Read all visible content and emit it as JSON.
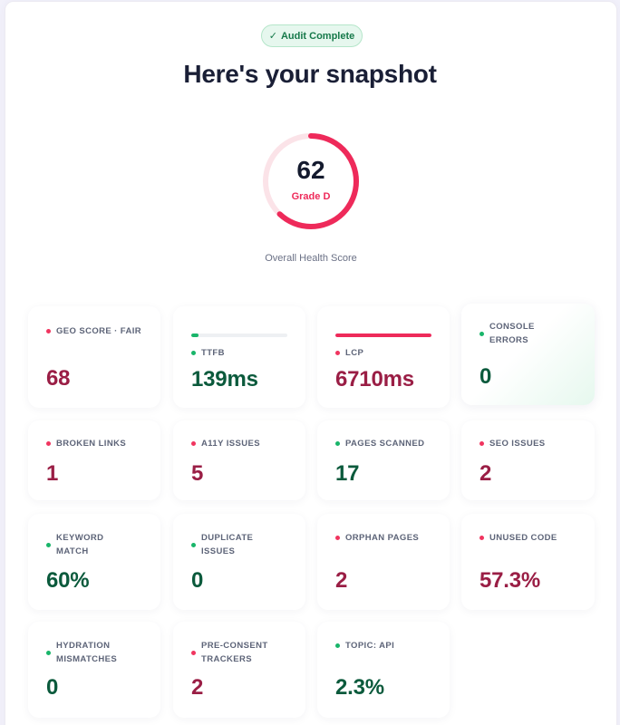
{
  "badge": {
    "icon": "check-icon",
    "label": "Audit Complete"
  },
  "title": "Here's your snapshot",
  "score": {
    "value": "62",
    "grade": "Grade D",
    "caption": "Overall Health Score",
    "fraction": 0.62,
    "color": "#ee2a5a",
    "track_color": "#fbe3e8"
  },
  "cards": [
    {
      "key": "geo",
      "label": "GEO SCORE · FAIR",
      "value": "68",
      "status": "bad"
    },
    {
      "key": "ttfb",
      "label": "TTFB",
      "value": "139ms",
      "status": "good",
      "progress": 0.08
    },
    {
      "key": "lcp",
      "label": "LCP",
      "value": "6710ms",
      "status": "bad",
      "progress": 1.0
    },
    {
      "key": "console",
      "label": "CONSOLE ERRORS",
      "label_lines": [
        "CONSOLE",
        "ERRORS"
      ],
      "value": "0",
      "status": "good"
    },
    {
      "key": "broken-links",
      "label": "BROKEN LINKS",
      "value": "1",
      "status": "bad"
    },
    {
      "key": "a11y",
      "label": "A11Y ISSUES",
      "value": "5",
      "status": "bad"
    },
    {
      "key": "pages-scanned",
      "label": "PAGES SCANNED",
      "value": "17",
      "status": "good"
    },
    {
      "key": "seo",
      "label": "SEO ISSUES",
      "value": "2",
      "status": "bad"
    },
    {
      "key": "keyword",
      "label": "KEYWORD MATCH",
      "label_lines": [
        "KEYWORD",
        "MATCH"
      ],
      "value": "60%",
      "status": "good"
    },
    {
      "key": "duplicate",
      "label": "DUPLICATE ISSUES",
      "label_lines": [
        "DUPLICATE",
        "ISSUES"
      ],
      "value": "0",
      "status": "good"
    },
    {
      "key": "orphan",
      "label": "ORPHAN PAGES",
      "value": "2",
      "status": "bad"
    },
    {
      "key": "unused",
      "label": "UNUSED CODE",
      "value": "57.3%",
      "status": "bad"
    },
    {
      "key": "hydration",
      "label": "HYDRATION MISMATCHES",
      "label_lines": [
        "HYDRATION",
        "MISMATCHES"
      ],
      "value": "0",
      "status": "good"
    },
    {
      "key": "pre-consent",
      "label": "PRE-CONSENT TRACKERS",
      "label_lines": [
        "PRE-CONSENT",
        "TRACKERS"
      ],
      "value": "2",
      "status": "bad"
    },
    {
      "key": "topic",
      "label": "TOPIC: API",
      "value": "2.3%",
      "status": "good"
    }
  ],
  "colors": {
    "bad_text": "#9a1e45",
    "good_text": "#0b5a3c",
    "bad_dot": "#f0355f",
    "good_dot": "#19b56a"
  }
}
